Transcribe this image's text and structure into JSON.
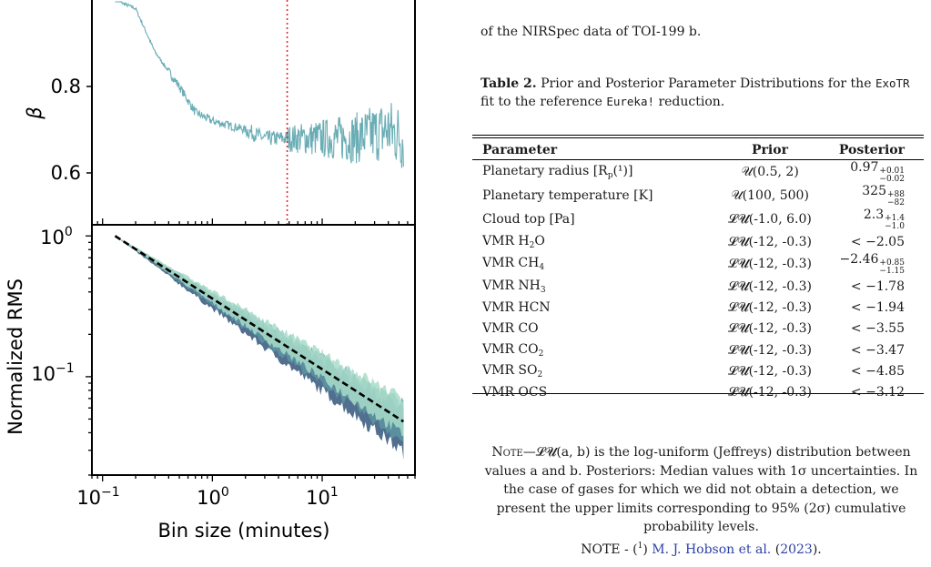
{
  "figure": {
    "top_panel": {
      "ylabel": "β",
      "yticks": [
        "0.8",
        "0.6"
      ],
      "ytick_values": [
        0.8,
        0.6
      ],
      "ylim": [
        0.48,
        1.0
      ],
      "vline_minutes": 4.8,
      "vline_color": "#e0282e",
      "line_color": "#6aadb5"
    },
    "bottom_panel": {
      "ylabel": "Normalized RMS",
      "xlabel": "Bin size (minutes)",
      "ytick_base": [
        "10",
        "10"
      ],
      "ytick_exp": [
        "0",
        "−1"
      ],
      "xtick_base": [
        "10",
        "10",
        "10"
      ],
      "xtick_exp": [
        "−1",
        "0",
        "1"
      ],
      "fill_light": "#a8dcc8",
      "fill_dark": "#33567a"
    }
  },
  "chart_data": [
    {
      "type": "line",
      "xlabel": "",
      "ylabel": "β",
      "xscale": "log",
      "xlim": [
        0.08,
        70
      ],
      "ylim": [
        0.48,
        1.0
      ],
      "x": [
        0.13,
        0.2,
        0.3,
        0.5,
        0.7,
        1.0,
        2.0,
        3.0,
        4.8,
        10,
        20,
        40,
        55
      ],
      "y": [
        1.0,
        0.98,
        0.88,
        0.8,
        0.74,
        0.72,
        0.7,
        0.68,
        0.68,
        0.68,
        0.68,
        0.7,
        0.68
      ],
      "vline_x": 4.8
    },
    {
      "type": "area",
      "xlabel": "Bin size (minutes)",
      "ylabel": "Normalized RMS",
      "xscale": "log",
      "yscale": "log",
      "xlim": [
        0.08,
        70
      ],
      "ylim": [
        0.02,
        1.2
      ],
      "reference_x": [
        0.13,
        55
      ],
      "reference_y": [
        1.0,
        0.048
      ],
      "band_lower_at_55min": 0.03,
      "band_upper_at_55min": 0.07
    }
  ],
  "text": {
    "caption_tail": "of the NIRSpec data of TOI-199 b.",
    "table_label": "Table 2.",
    "table_caption_a": "Prior and Posterior Parameter Distributions for the ",
    "table_caption_code1": "ExoTR",
    "table_caption_b": " fit to the reference ",
    "table_caption_code2": "Eureka!",
    "table_caption_c": " reduction.",
    "col_parameter": "Parameter",
    "col_prior": "Prior",
    "col_posterior": "Posterior",
    "note_lead": "Note",
    "note_body": "—𝓛𝓤(a, b) is the log-uniform (Jeffreys) distribution between values a and b. Posteriors: Median values with 1σ uncertainties. In the case of gases for which we did not obtain a detection, we present the upper limits corresponding to 95% (2σ) cumulative probability levels.",
    "note2_prefix": "NOTE - (",
    "note2_sup": "1",
    "note2_mid": ") ",
    "note2_link": "M. J. Hobson et al.",
    "note2_year_open": " (",
    "note2_year": "2023",
    "note2_end": ")."
  },
  "rows": [
    {
      "param": "Planetary radius [R",
      "param_sub": "p",
      "param_tail": "(¹)]",
      "prior": "𝒰(0.5, 2)",
      "post": "0.97",
      "post_sup": "+0.01",
      "post_sub": "−0.02"
    },
    {
      "param": "Planetary temperature [K]",
      "param_sub": "",
      "param_tail": "",
      "prior": "𝒰(100, 500)",
      "post": "325",
      "post_sup": "+88",
      "post_sub": "−82"
    },
    {
      "param": "Cloud top [Pa]",
      "param_sub": "",
      "param_tail": "",
      "prior": "𝓛𝓤(-1.0, 6.0)",
      "post": "2.3",
      "post_sup": "+1.4",
      "post_sub": "−1.0"
    },
    {
      "param": "VMR H",
      "param_sub": "2",
      "param_tail": "O",
      "prior": "𝓛𝓤(-12, -0.3)",
      "post": "< −2.05",
      "post_sup": "",
      "post_sub": ""
    },
    {
      "param": "VMR CH",
      "param_sub": "4",
      "param_tail": "",
      "prior": "𝓛𝓤(-12, -0.3)",
      "post": "−2.46",
      "post_sup": "+0.85",
      "post_sub": "−1.15"
    },
    {
      "param": "VMR NH",
      "param_sub": "3",
      "param_tail": "",
      "prior": "𝓛𝓤(-12, -0.3)",
      "post": "< −1.78",
      "post_sup": "",
      "post_sub": ""
    },
    {
      "param": "VMR HCN",
      "param_sub": "",
      "param_tail": "",
      "prior": "𝓛𝓤(-12, -0.3)",
      "post": "< −1.94",
      "post_sup": "",
      "post_sub": ""
    },
    {
      "param": "VMR CO",
      "param_sub": "",
      "param_tail": "",
      "prior": "𝓛𝓤(-12, -0.3)",
      "post": "< −3.55",
      "post_sup": "",
      "post_sub": ""
    },
    {
      "param": "VMR CO",
      "param_sub": "2",
      "param_tail": "",
      "prior": "𝓛𝓤(-12, -0.3)",
      "post": "< −3.47",
      "post_sup": "",
      "post_sub": ""
    },
    {
      "param": "VMR SO",
      "param_sub": "2",
      "param_tail": "",
      "prior": "𝓛𝓤(-12, -0.3)",
      "post": "< −4.85",
      "post_sup": "",
      "post_sub": ""
    },
    {
      "param": "VMR OCS",
      "param_sub": "",
      "param_tail": "",
      "prior": "𝓛𝓤(-12, -0.3)",
      "post": "< −3.12",
      "post_sup": "",
      "post_sub": ""
    }
  ]
}
